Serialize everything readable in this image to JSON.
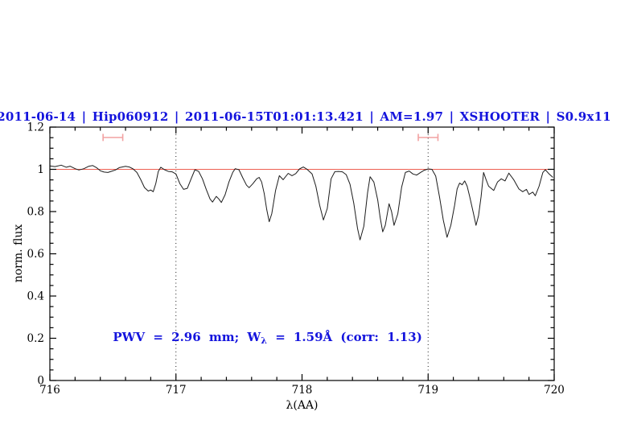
{
  "figure": {
    "title": "2011-06-14 | Hip060912 | 2011-06-15T01:01:13.421 | AM=1.97 | XSHOOTER | S0.9x11",
    "title_color": "#1414dd",
    "background": "#ffffff"
  },
  "chart_data": {
    "type": "line",
    "title": "2011-06-14 | Hip060912 | 2011-06-15T01:01:13.421 | AM=1.97 | XSHOOTER | S0.9x11",
    "xlabel": "λ(AA)",
    "ylabel": "norm. flux",
    "xlim": [
      716,
      720
    ],
    "ylim": [
      0,
      1.2
    ],
    "x_major_ticks": [
      716,
      717,
      718,
      719,
      720
    ],
    "x_tick_labels": [
      "716",
      "717",
      "718",
      "719",
      "720"
    ],
    "x_minor_step": 0.2,
    "y_major_ticks": [
      0,
      0.2,
      0.4,
      0.6,
      0.8,
      1,
      1.2
    ],
    "y_tick_labels": [
      "0",
      "0.2",
      "0.4",
      "0.6",
      "0.8",
      "1",
      "1.2"
    ],
    "y_minor_step": 0.05,
    "grid": false,
    "legend": null,
    "spectrum_color": "#1c1c1c",
    "reference_line": {
      "y": 1.0,
      "color": "#ee5f52"
    },
    "vlines": [
      {
        "x": 717,
        "style": "dotted"
      },
      {
        "x": 719,
        "style": "dotted"
      }
    ],
    "range_markers": [
      {
        "x_center": 716.5,
        "half_width": 0.078,
        "y": 1.151,
        "cap_half_height": 0.017,
        "color": "#f2a2a2"
      },
      {
        "x_center": 719.0,
        "half_width": 0.078,
        "y": 1.151,
        "cap_half_height": 0.017,
        "color": "#f2a2a2"
      }
    ],
    "annotation": {
      "prefix": "PWV = 2.96 mm; W",
      "sub": "λ",
      "suffix": " = 1.59Å (corr: 1.13)",
      "x": 716.5,
      "y": 0.187,
      "color": "#1414dd"
    },
    "series": [
      {
        "name": "normalized-spectrum",
        "points": [
          [
            716.0,
            1.016
          ],
          [
            716.04,
            1.013
          ],
          [
            716.09,
            1.02
          ],
          [
            716.13,
            1.01
          ],
          [
            716.16,
            1.015
          ],
          [
            716.2,
            1.003
          ],
          [
            716.23,
            0.997
          ],
          [
            716.27,
            1.003
          ],
          [
            716.31,
            1.015
          ],
          [
            716.34,
            1.018
          ],
          [
            716.37,
            1.008
          ],
          [
            716.4,
            0.993
          ],
          [
            716.43,
            0.987
          ],
          [
            716.46,
            0.985
          ],
          [
            716.49,
            0.991
          ],
          [
            716.52,
            0.997
          ],
          [
            716.55,
            1.008
          ],
          [
            716.6,
            1.014
          ],
          [
            716.63,
            1.011
          ],
          [
            716.66,
            1.002
          ],
          [
            716.69,
            0.985
          ],
          [
            716.72,
            0.952
          ],
          [
            716.75,
            0.914
          ],
          [
            716.78,
            0.897
          ],
          [
            716.8,
            0.902
          ],
          [
            716.82,
            0.894
          ],
          [
            716.84,
            0.933
          ],
          [
            716.86,
            0.99
          ],
          [
            716.88,
            1.01
          ],
          [
            716.91,
            0.998
          ],
          [
            716.94,
            0.99
          ],
          [
            716.97,
            0.988
          ],
          [
            717.0,
            0.978
          ],
          [
            717.03,
            0.933
          ],
          [
            717.06,
            0.905
          ],
          [
            717.09,
            0.91
          ],
          [
            717.12,
            0.955
          ],
          [
            717.15,
            0.998
          ],
          [
            717.18,
            0.99
          ],
          [
            717.21,
            0.955
          ],
          [
            717.24,
            0.905
          ],
          [
            717.27,
            0.86
          ],
          [
            717.29,
            0.845
          ],
          [
            717.32,
            0.872
          ],
          [
            717.34,
            0.86
          ],
          [
            717.36,
            0.843
          ],
          [
            717.39,
            0.88
          ],
          [
            717.42,
            0.94
          ],
          [
            717.45,
            0.985
          ],
          [
            717.47,
            1.003
          ],
          [
            717.5,
            0.998
          ],
          [
            717.53,
            0.96
          ],
          [
            717.56,
            0.925
          ],
          [
            717.58,
            0.913
          ],
          [
            717.61,
            0.932
          ],
          [
            717.64,
            0.955
          ],
          [
            717.66,
            0.962
          ],
          [
            717.68,
            0.94
          ],
          [
            717.7,
            0.885
          ],
          [
            717.72,
            0.81
          ],
          [
            717.74,
            0.752
          ],
          [
            717.76,
            0.79
          ],
          [
            717.79,
            0.9
          ],
          [
            717.82,
            0.97
          ],
          [
            717.85,
            0.951
          ],
          [
            717.89,
            0.981
          ],
          [
            717.92,
            0.97
          ],
          [
            717.95,
            0.98
          ],
          [
            717.98,
            1.002
          ],
          [
            718.01,
            1.011
          ],
          [
            718.04,
            1.0
          ],
          [
            718.08,
            0.978
          ],
          [
            718.11,
            0.92
          ],
          [
            718.14,
            0.83
          ],
          [
            718.17,
            0.76
          ],
          [
            718.2,
            0.815
          ],
          [
            718.23,
            0.955
          ],
          [
            718.26,
            0.989
          ],
          [
            718.29,
            0.99
          ],
          [
            718.32,
            0.988
          ],
          [
            718.35,
            0.975
          ],
          [
            718.38,
            0.93
          ],
          [
            718.41,
            0.84
          ],
          [
            718.44,
            0.72
          ],
          [
            718.46,
            0.666
          ],
          [
            718.49,
            0.73
          ],
          [
            718.52,
            0.89
          ],
          [
            718.54,
            0.965
          ],
          [
            718.57,
            0.94
          ],
          [
            718.6,
            0.855
          ],
          [
            718.62,
            0.77
          ],
          [
            718.64,
            0.704
          ],
          [
            718.66,
            0.735
          ],
          [
            718.69,
            0.837
          ],
          [
            718.71,
            0.8
          ],
          [
            718.73,
            0.735
          ],
          [
            718.76,
            0.79
          ],
          [
            718.79,
            0.915
          ],
          [
            718.82,
            0.985
          ],
          [
            718.85,
            0.992
          ],
          [
            718.88,
            0.978
          ],
          [
            718.91,
            0.973
          ],
          [
            718.94,
            0.985
          ],
          [
            718.97,
            0.996
          ],
          [
            719.0,
            1.002
          ],
          [
            719.03,
            1.0
          ],
          [
            719.06,
            0.968
          ],
          [
            719.09,
            0.87
          ],
          [
            719.12,
            0.76
          ],
          [
            719.15,
            0.678
          ],
          [
            719.18,
            0.735
          ],
          [
            719.21,
            0.83
          ],
          [
            719.23,
            0.907
          ],
          [
            719.25,
            0.935
          ],
          [
            719.27,
            0.927
          ],
          [
            719.29,
            0.945
          ],
          [
            719.31,
            0.92
          ],
          [
            719.33,
            0.87
          ],
          [
            719.36,
            0.79
          ],
          [
            719.38,
            0.735
          ],
          [
            719.4,
            0.78
          ],
          [
            719.42,
            0.87
          ],
          [
            719.44,
            0.985
          ],
          [
            719.46,
            0.95
          ],
          [
            719.48,
            0.92
          ],
          [
            719.52,
            0.9
          ],
          [
            719.55,
            0.94
          ],
          [
            719.58,
            0.955
          ],
          [
            719.61,
            0.945
          ],
          [
            719.64,
            0.982
          ],
          [
            719.68,
            0.95
          ],
          [
            719.72,
            0.907
          ],
          [
            719.75,
            0.894
          ],
          [
            719.78,
            0.905
          ],
          [
            719.8,
            0.881
          ],
          [
            719.83,
            0.892
          ],
          [
            719.85,
            0.875
          ],
          [
            719.88,
            0.92
          ],
          [
            719.91,
            0.985
          ],
          [
            719.93,
            0.998
          ],
          [
            719.96,
            0.978
          ],
          [
            719.99,
            0.962
          ]
        ]
      }
    ]
  }
}
